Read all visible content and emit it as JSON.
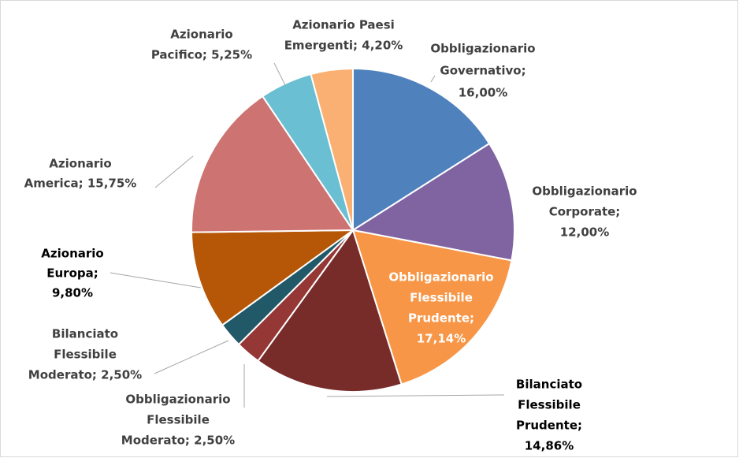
{
  "chart_data": {
    "type": "pie",
    "values": [
      16,
      12,
      17.14,
      14.86,
      2.5,
      2.5,
      9.8,
      15.75,
      5.25,
      4.2
    ],
    "value_labels": [
      [
        "Obbligazionario",
        "Governativo;",
        "16,00%"
      ],
      [
        "Obbligazionario",
        "Corporate;",
        "12,00%"
      ],
      [
        "Obbligazionario",
        "Flessibile",
        "Prudente;",
        "17,14%"
      ],
      [
        "Bilanciato",
        "Flessibile",
        "Prudente;",
        "14,86%"
      ],
      [
        "Obbligazionario",
        "Flessibile",
        "Moderato; 2,50%"
      ],
      [
        "Bilanciato",
        "Flessibile",
        "Moderato; 2,50%"
      ],
      [
        "Azionario",
        "Europa;",
        "9,80%"
      ],
      [
        "Azionario",
        "America; 15,75%"
      ],
      [
        "Azionario",
        "Pacifico; 5,25%"
      ],
      [
        "Azionario Paesi",
        "Emergenti; 4,20%"
      ]
    ],
    "colors": [
      "#4f81bd",
      "#8064a2",
      "#f79646",
      "#772c2a",
      "#953735",
      "#215968",
      "#b65708",
      "#cd7371",
      "#6bbfd3",
      "#fab072"
    ]
  }
}
